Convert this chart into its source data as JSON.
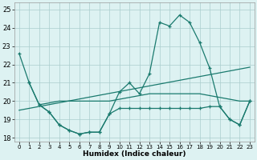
{
  "xlabel": "Humidex (Indice chaleur)",
  "x": [
    0,
    1,
    2,
    3,
    4,
    5,
    6,
    7,
    8,
    9,
    10,
    11,
    12,
    13,
    14,
    15,
    16,
    17,
    18,
    19,
    20,
    21,
    22,
    23
  ],
  "line_main": [
    22.6,
    21.0,
    19.8,
    19.4,
    18.7,
    18.4,
    18.2,
    18.3,
    18.3,
    19.3,
    20.5,
    21.0,
    20.4,
    21.5,
    24.3,
    24.1,
    24.7,
    24.3,
    23.2,
    21.8,
    19.7,
    19.0,
    18.7,
    20.0
  ],
  "line_lower": [
    null,
    21.0,
    19.8,
    19.4,
    18.7,
    18.4,
    18.2,
    18.3,
    18.3,
    19.3,
    19.6,
    19.6,
    19.6,
    19.6,
    19.6,
    19.6,
    19.6,
    19.6,
    19.6,
    19.7,
    19.7,
    19.0,
    18.7,
    20.0
  ],
  "line_trend_x": [
    0,
    23
  ],
  "line_trend_y": [
    19.5,
    21.85
  ],
  "line_mid": [
    null,
    null,
    19.8,
    19.9,
    20.0,
    20.0,
    20.0,
    20.0,
    20.0,
    20.0,
    20.1,
    20.2,
    20.3,
    20.4,
    20.4,
    20.4,
    20.4,
    20.4,
    20.4,
    20.3,
    20.2,
    20.1,
    20.0,
    20.0
  ],
  "color": "#1a7a6e",
  "bg_color": "#ddf2f2",
  "grid_color": "#aacece",
  "ylim": [
    17.8,
    25.4
  ],
  "yticks": [
    18,
    19,
    20,
    21,
    22,
    23,
    24,
    25
  ],
  "xticks": [
    0,
    1,
    2,
    3,
    4,
    5,
    6,
    7,
    8,
    9,
    10,
    11,
    12,
    13,
    14,
    15,
    16,
    17,
    18,
    19,
    20,
    21,
    22,
    23
  ]
}
